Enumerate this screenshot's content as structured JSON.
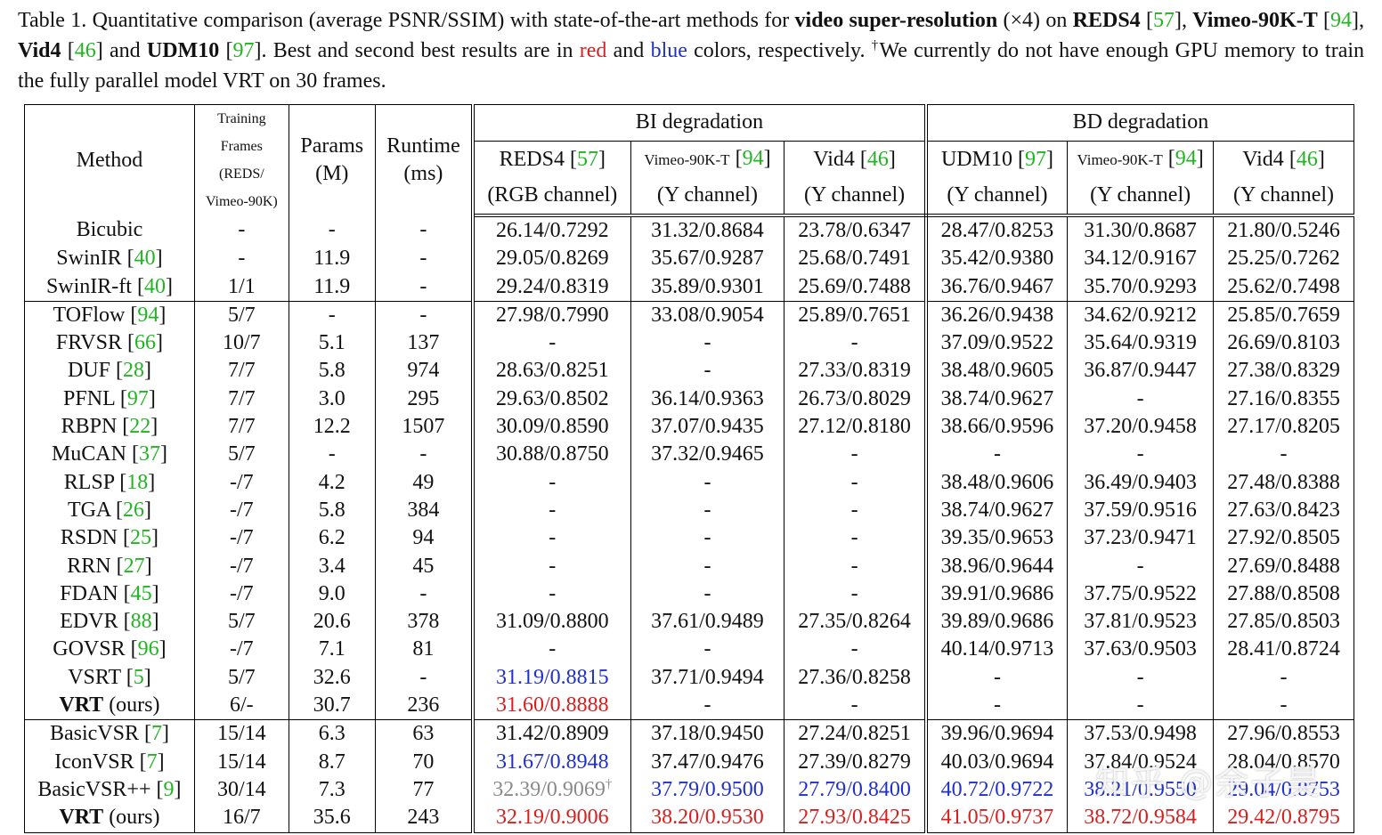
{
  "caption": {
    "p1": "Table 1. Quantitative comparison (average PSNR/SSIM) with state-of-the-art methods for ",
    "b1": "video super-resolution",
    "p2": " (×4) on ",
    "b2": "REDS4",
    "r1": "57",
    "b3": "Vimeo-90K-T",
    "r2": "94",
    "b4": "Vid4",
    "r3": "46",
    "and1": " and ",
    "b5": "UDM10",
    "r4": "97",
    "p3": ". Best and second best results are in ",
    "red": "red",
    "and2": " and ",
    "blue": "blue",
    "p4": " colors, respectively. ",
    "dagger": "†",
    "p5": "We currently do not have enough GPU memory to train the fully parallel model VRT on 30 frames."
  },
  "header": {
    "method": "Method",
    "frames_line1": "Training",
    "frames_line2": "Frames",
    "frames_line3": "(REDS/",
    "frames_line4": "Vimeo-90K)",
    "params_line1": "Params",
    "params_line2": "(M)",
    "runtime_line1": "Runtime",
    "runtime_line2": "(ms)",
    "bi": "BI degradation",
    "bd": "BD degradation",
    "cols": [
      {
        "name": "REDS4",
        "ref": "57",
        "sub": "(RGB channel)",
        "small": false
      },
      {
        "name": "Vimeo-90K-T",
        "ref": "94",
        "sub": "(Y channel)",
        "small": true
      },
      {
        "name": "Vid4",
        "ref": "46",
        "sub": "(Y channel)",
        "small": false
      },
      {
        "name": "UDM10",
        "ref": "97",
        "sub": "(Y channel)",
        "small": false
      },
      {
        "name": "Vimeo-90K-T",
        "ref": "94",
        "sub": "(Y channel)",
        "small": true
      },
      {
        "name": "Vid4",
        "ref": "46",
        "sub": "(Y channel)",
        "small": false
      }
    ]
  },
  "rows": [
    {
      "method": "Bicubic",
      "ref": "",
      "bold": false,
      "ours": "",
      "frames": "-",
      "params": "-",
      "runtime": "-",
      "v": [
        "26.14/0.7292",
        "31.32/0.8684",
        "23.78/0.6347",
        "28.47/0.8253",
        "31.30/0.8687",
        "21.80/0.5246"
      ],
      "c": [
        "",
        "",
        "",
        "",
        "",
        ""
      ],
      "group_end": false
    },
    {
      "method": "SwinIR",
      "ref": "40",
      "bold": false,
      "ours": "",
      "frames": "-",
      "params": "11.9",
      "runtime": "-",
      "v": [
        "29.05/0.8269",
        "35.67/0.9287",
        "25.68/0.7491",
        "35.42/0.9380",
        "34.12/0.9167",
        "25.25/0.7262"
      ],
      "c": [
        "",
        "",
        "",
        "",
        "",
        ""
      ],
      "group_end": false
    },
    {
      "method": "SwinIR-ft",
      "ref": "40",
      "bold": false,
      "ours": "",
      "frames": "1/1",
      "params": "11.9",
      "runtime": "-",
      "v": [
        "29.24/0.8319",
        "35.89/0.9301",
        "25.69/0.7488",
        "36.76/0.9467",
        "35.70/0.9293",
        "25.62/0.7498"
      ],
      "c": [
        "",
        "",
        "",
        "",
        "",
        ""
      ],
      "group_end": true
    },
    {
      "method": "TOFlow",
      "ref": "94",
      "bold": false,
      "ours": "",
      "frames": "5/7",
      "params": "-",
      "runtime": "-",
      "v": [
        "27.98/0.7990",
        "33.08/0.9054",
        "25.89/0.7651",
        "36.26/0.9438",
        "34.62/0.9212",
        "25.85/0.7659"
      ],
      "c": [
        "",
        "",
        "",
        "",
        "",
        ""
      ],
      "group_end": false
    },
    {
      "method": "FRVSR",
      "ref": "66",
      "bold": false,
      "ours": "",
      "frames": "10/7",
      "params": "5.1",
      "runtime": "137",
      "v": [
        "-",
        "-",
        "-",
        "37.09/0.9522",
        "35.64/0.9319",
        "26.69/0.8103"
      ],
      "c": [
        "",
        "",
        "",
        "",
        "",
        ""
      ],
      "group_end": false
    },
    {
      "method": "DUF",
      "ref": "28",
      "bold": false,
      "ours": "",
      "frames": "7/7",
      "params": "5.8",
      "runtime": "974",
      "v": [
        "28.63/0.8251",
        "-",
        "27.33/0.8319",
        "38.48/0.9605",
        "36.87/0.9447",
        "27.38/0.8329"
      ],
      "c": [
        "",
        "",
        "",
        "",
        "",
        ""
      ],
      "group_end": false
    },
    {
      "method": "PFNL",
      "ref": "97",
      "bold": false,
      "ours": "",
      "frames": "7/7",
      "params": "3.0",
      "runtime": "295",
      "v": [
        "29.63/0.8502",
        "36.14/0.9363",
        "26.73/0.8029",
        "38.74/0.9627",
        "-",
        "27.16/0.8355"
      ],
      "c": [
        "",
        "",
        "",
        "",
        "",
        ""
      ],
      "group_end": false
    },
    {
      "method": "RBPN",
      "ref": "22",
      "bold": false,
      "ours": "",
      "frames": "7/7",
      "params": "12.2",
      "runtime": "1507",
      "v": [
        "30.09/0.8590",
        "37.07/0.9435",
        "27.12/0.8180",
        "38.66/0.9596",
        "37.20/0.9458",
        "27.17/0.8205"
      ],
      "c": [
        "",
        "",
        "",
        "",
        "",
        ""
      ],
      "group_end": false
    },
    {
      "method": "MuCAN",
      "ref": "37",
      "bold": false,
      "ours": "",
      "frames": "5/7",
      "params": "-",
      "runtime": "-",
      "v": [
        "30.88/0.8750",
        "37.32/0.9465",
        "-",
        "-",
        "-",
        "-"
      ],
      "c": [
        "",
        "",
        "",
        "",
        "",
        ""
      ],
      "group_end": false
    },
    {
      "method": "RLSP",
      "ref": "18",
      "bold": false,
      "ours": "",
      "frames": "-/7",
      "params": "4.2",
      "runtime": "49",
      "v": [
        "-",
        "-",
        "-",
        "38.48/0.9606",
        "36.49/0.9403",
        "27.48/0.8388"
      ],
      "c": [
        "",
        "",
        "",
        "",
        "",
        ""
      ],
      "group_end": false
    },
    {
      "method": "TGA",
      "ref": "26",
      "bold": false,
      "ours": "",
      "frames": "-/7",
      "params": "5.8",
      "runtime": "384",
      "v": [
        "-",
        "-",
        "-",
        "38.74/0.9627",
        "37.59/0.9516",
        "27.63/0.8423"
      ],
      "c": [
        "",
        "",
        "",
        "",
        "",
        ""
      ],
      "group_end": false
    },
    {
      "method": "RSDN",
      "ref": "25",
      "bold": false,
      "ours": "",
      "frames": "-/7",
      "params": "6.2",
      "runtime": "94",
      "v": [
        "-",
        "-",
        "-",
        "39.35/0.9653",
        "37.23/0.9471",
        "27.92/0.8505"
      ],
      "c": [
        "",
        "",
        "",
        "",
        "",
        ""
      ],
      "group_end": false
    },
    {
      "method": "RRN",
      "ref": "27",
      "bold": false,
      "ours": "",
      "frames": "-/7",
      "params": "3.4",
      "runtime": "45",
      "v": [
        "-",
        "-",
        "-",
        "38.96/0.9644",
        "-",
        "27.69/0.8488"
      ],
      "c": [
        "",
        "",
        "",
        "",
        "",
        ""
      ],
      "group_end": false
    },
    {
      "method": "FDAN",
      "ref": "45",
      "bold": false,
      "ours": "",
      "frames": "-/7",
      "params": "9.0",
      "runtime": "-",
      "v": [
        "-",
        "-",
        "-",
        "39.91/0.9686",
        "37.75/0.9522",
        "27.88/0.8508"
      ],
      "c": [
        "",
        "",
        "",
        "",
        "",
        ""
      ],
      "group_end": false
    },
    {
      "method": "EDVR",
      "ref": "88",
      "bold": false,
      "ours": "",
      "frames": "5/7",
      "params": "20.6",
      "runtime": "378",
      "v": [
        "31.09/0.8800",
        "37.61/0.9489",
        "27.35/0.8264",
        "39.89/0.9686",
        "37.81/0.9523",
        "27.85/0.8503"
      ],
      "c": [
        "",
        "",
        "",
        "",
        "",
        ""
      ],
      "group_end": false
    },
    {
      "method": "GOVSR",
      "ref": "96",
      "bold": false,
      "ours": "",
      "frames": "-/7",
      "params": "7.1",
      "runtime": "81",
      "v": [
        "-",
        "-",
        "-",
        "40.14/0.9713",
        "37.63/0.9503",
        "28.41/0.8724"
      ],
      "c": [
        "",
        "",
        "",
        "",
        "",
        ""
      ],
      "group_end": false
    },
    {
      "method": "VSRT",
      "ref": "5",
      "bold": false,
      "ours": "",
      "frames": "5/7",
      "params": "32.6",
      "runtime": "-",
      "v": [
        "31.19/0.8815",
        "37.71/0.9494",
        "27.36/0.8258",
        "-",
        "-",
        "-"
      ],
      "c": [
        "bl",
        "",
        "",
        "",
        "",
        ""
      ],
      "group_end": false
    },
    {
      "method": "VRT",
      "ref": "",
      "bold": true,
      "ours": " (ours)",
      "frames": "6/-",
      "params": "30.7",
      "runtime": "236",
      "v": [
        "31.60/0.8888",
        "-",
        "-",
        "-",
        "-",
        "-"
      ],
      "c": [
        "r",
        "",
        "",
        "",
        "",
        ""
      ],
      "group_end": true
    },
    {
      "method": "BasicVSR",
      "ref": "7",
      "bold": false,
      "ours": "",
      "frames": "15/14",
      "params": "6.3",
      "runtime": "63",
      "v": [
        "31.42/0.8909",
        "37.18/0.9450",
        "27.24/0.8251",
        "39.96/0.9694",
        "37.53/0.9498",
        "27.96/0.8553"
      ],
      "c": [
        "",
        "",
        "",
        "",
        "",
        ""
      ],
      "group_end": false
    },
    {
      "method": "IconVSR",
      "ref": "7",
      "bold": false,
      "ours": "",
      "frames": "15/14",
      "params": "8.7",
      "runtime": "70",
      "v": [
        "31.67/0.8948",
        "37.47/0.9476",
        "27.39/0.8279",
        "40.03/0.9694",
        "37.84/0.9524",
        "28.04/0.8570"
      ],
      "c": [
        "bl",
        "",
        "",
        "",
        "",
        ""
      ],
      "group_end": false
    },
    {
      "method": "BasicVSR++",
      "ref": "9",
      "bold": false,
      "ours": "",
      "frames": "30/14",
      "params": "7.3",
      "runtime": "77",
      "v": [
        "32.39/0.9069†",
        "37.79/0.9500",
        "27.79/0.8400",
        "40.72/0.9722",
        "38.21/0.9550",
        "29.04/0.8753"
      ],
      "c": [
        "gr",
        "bl",
        "bl",
        "bl",
        "bl",
        "bl"
      ],
      "group_end": false
    },
    {
      "method": "VRT",
      "ref": "",
      "bold": true,
      "ours": " (ours)",
      "frames": "16/7",
      "params": "35.6",
      "runtime": "243",
      "v": [
        "32.19/0.9006",
        "38.20/0.9530",
        "27.93/0.8425",
        "41.05/0.9737",
        "38.72/0.9584",
        "29.42/0.8795"
      ],
      "c": [
        "r",
        "r",
        "r",
        "r",
        "r",
        "r"
      ],
      "group_end": false
    }
  ],
  "watermark": "知乎 @余子昊"
}
